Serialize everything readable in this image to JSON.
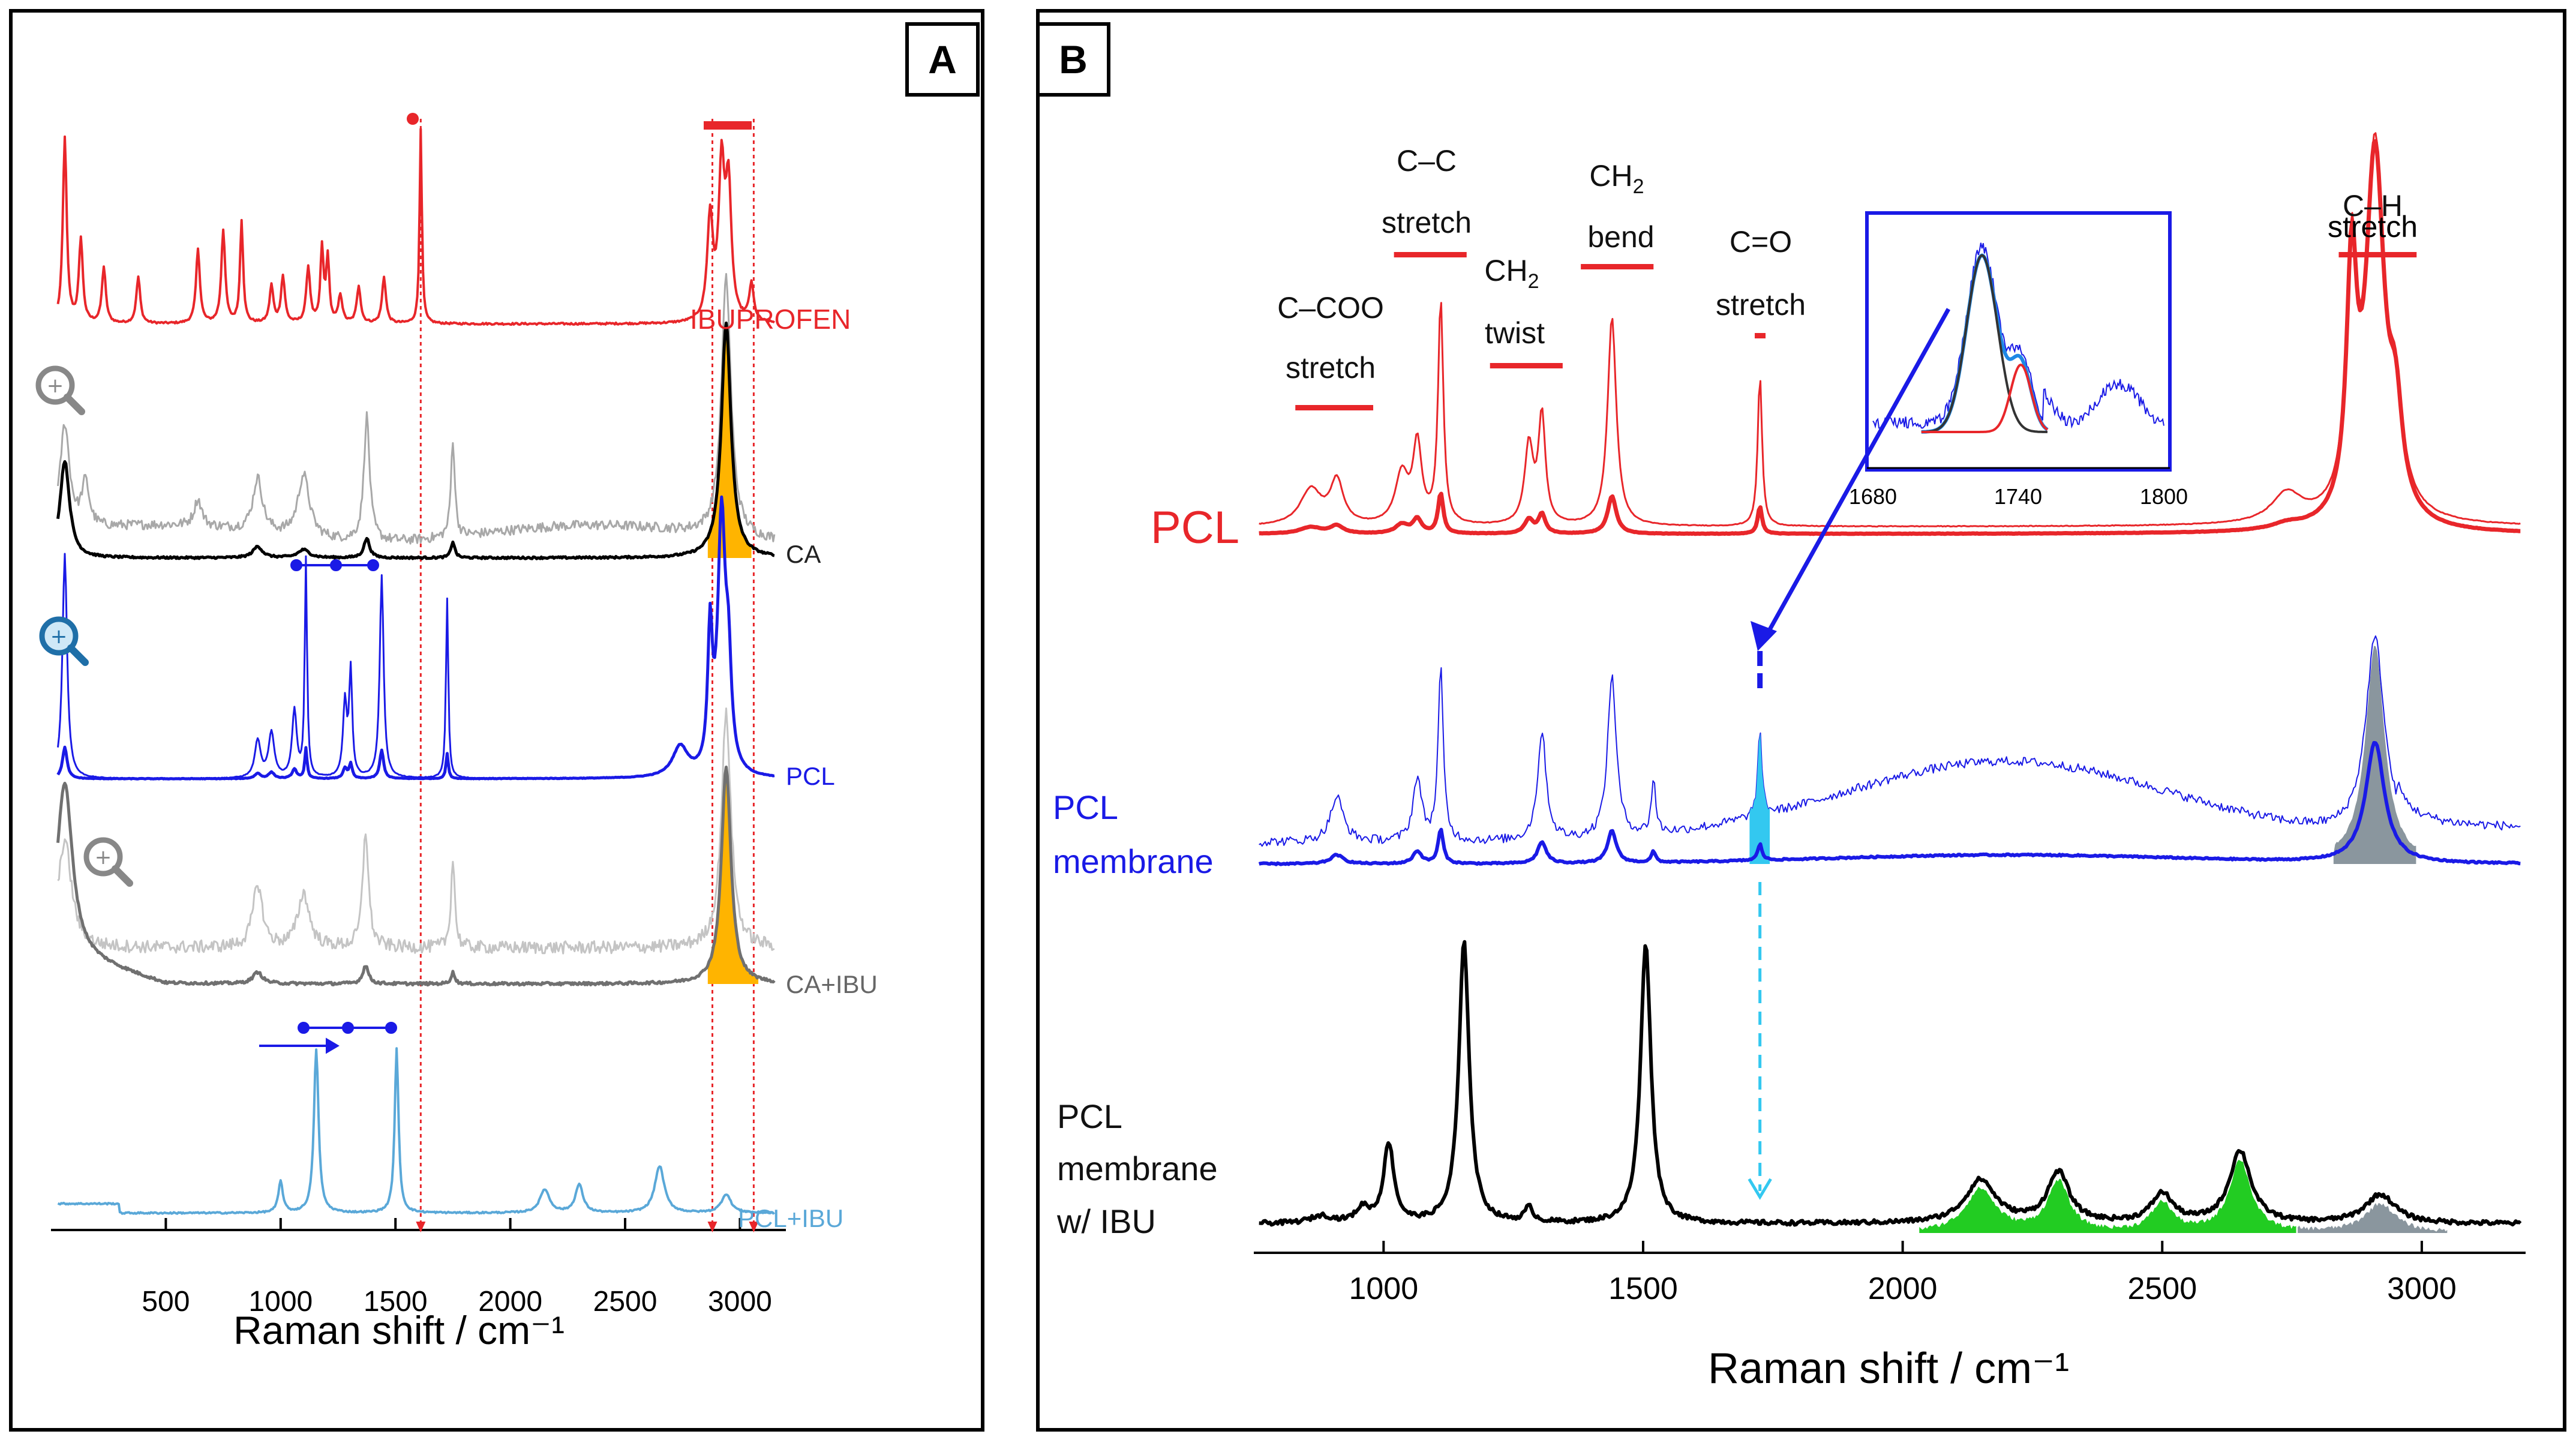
{
  "panel_a": {
    "label": "A",
    "xlabel": "Raman shift / cm⁻¹",
    "tick_labels": [
      "500",
      "1000",
      "1500",
      "2000",
      "2500",
      "3000"
    ],
    "spectrum_labels": {
      "ibuprofen": "IBUPROFEN",
      "ca": "CA",
      "pcl": "PCL",
      "ca_ibu": "CA+IBU",
      "pcl_ibu": "PCL+IBU"
    }
  },
  "panel_b": {
    "label": "B",
    "xlabel": "Raman shift / cm⁻¹",
    "tick_labels": [
      "1000",
      "1500",
      "2000",
      "2500",
      "3000"
    ],
    "spectrum_labels": {
      "pcl": "PCL",
      "membrane_1": "PCL",
      "membrane_2": "membrane",
      "ibu_1": "PCL",
      "ibu_2": "membrane",
      "ibu_3": "w/ IBU"
    },
    "bands": {
      "ccoo_1": "C–COO",
      "ccoo_2": "stretch",
      "cc_1": "C–C",
      "cc_2": "stretch",
      "ch2t_1": "CH",
      "ch2t_sub": "2",
      "ch2t_2": "twist",
      "ch2b_1": "CH",
      "ch2b_sub": "2",
      "ch2b_2": "bend",
      "co_1": "C=O",
      "co_2": "stretch",
      "ch_1": "C–H",
      "ch_2": "stretch"
    },
    "inset_ticks": [
      "1680",
      "1740",
      "1800"
    ]
  },
  "colors": {
    "red": "#e8262a",
    "black": "#000000",
    "gray": "#707070",
    "lightgray": "#a8a8a8",
    "blue": "#1a1ae6",
    "lightblue": "#5aa8d8",
    "orange": "#ffb400",
    "cyan": "#33c8f0",
    "green": "#22cc22",
    "slate": "#8a969e"
  },
  "chart_data": [
    {
      "type": "line",
      "panel": "A",
      "xlabel": "Raman shift / cm⁻¹",
      "xlim": [
        0,
        3200
      ],
      "xticks": [
        500,
        1000,
        1500,
        2000,
        2500,
        3000
      ],
      "series": [
        {
          "name": "IBUPROFEN",
          "peaks_cm1": [
            60,
            130,
            230,
            380,
            640,
            750,
            830,
            960,
            1010,
            1120,
            1180,
            1205,
            1340,
            1450,
            1610,
            2870,
            2920,
            2950,
            3050
          ]
        },
        {
          "name": "CA",
          "peaks_cm1": [
            60,
            150,
            900,
            1100,
            1375,
            1750,
            2940
          ]
        },
        {
          "name": "PCL",
          "peaks_cm1": [
            60,
            1110,
            1300,
            1440,
            1725,
            2870,
            2920
          ]
        },
        {
          "name": "CA+IBU",
          "peaks_cm1": [
            60,
            900,
            1370,
            1750,
            2940
          ]
        },
        {
          "name": "PCL+IBU",
          "peaks_cm1": [
            1000,
            1155,
            1505,
            2150,
            2300,
            2650,
            2940
          ]
        }
      ],
      "vertical_marks_cm1": [
        1610,
        2880,
        3060
      ]
    },
    {
      "type": "line",
      "panel": "B",
      "xlabel": "Raman shift / cm⁻¹",
      "xlim": [
        750,
        3200
      ],
      "xticks": [
        1000,
        1500,
        2000,
        2500,
        3000
      ],
      "series": [
        {
          "name": "PCL",
          "peaks_cm1": [
            860,
            910,
            1065,
            1110,
            1280,
            1305,
            1440,
            1725,
            2865,
            2910
          ]
        },
        {
          "name": "PCL membrane",
          "peaks_cm1": [
            910,
            1065,
            1110,
            1305,
            1440,
            1520,
            1725,
            2910
          ]
        },
        {
          "name": "PCL membrane w/ IBU",
          "peaks_cm1": [
            1010,
            1155,
            1505,
            2150,
            2300,
            2500,
            2650,
            2920
          ]
        }
      ],
      "bands_cm1": [
        {
          "label": "C–COO stretch",
          "range": [
            830,
            980
          ]
        },
        {
          "label": "C–C stretch",
          "range": [
            1020,
            1160
          ]
        },
        {
          "label": "CH2 twist",
          "range": [
            1205,
            1345
          ]
        },
        {
          "label": "CH2 bend",
          "range": [
            1380,
            1520
          ]
        },
        {
          "label": "C=O stretch",
          "range": [
            1715,
            1735
          ]
        },
        {
          "label": "C–H stretch",
          "range": [
            2840,
            2990
          ]
        }
      ],
      "inset": {
        "xlim": [
          1680,
          1800
        ],
        "xticks": [
          1680,
          1740,
          1800
        ],
        "fit_peaks_cm1": [
          1725,
          1740
        ]
      }
    }
  ]
}
